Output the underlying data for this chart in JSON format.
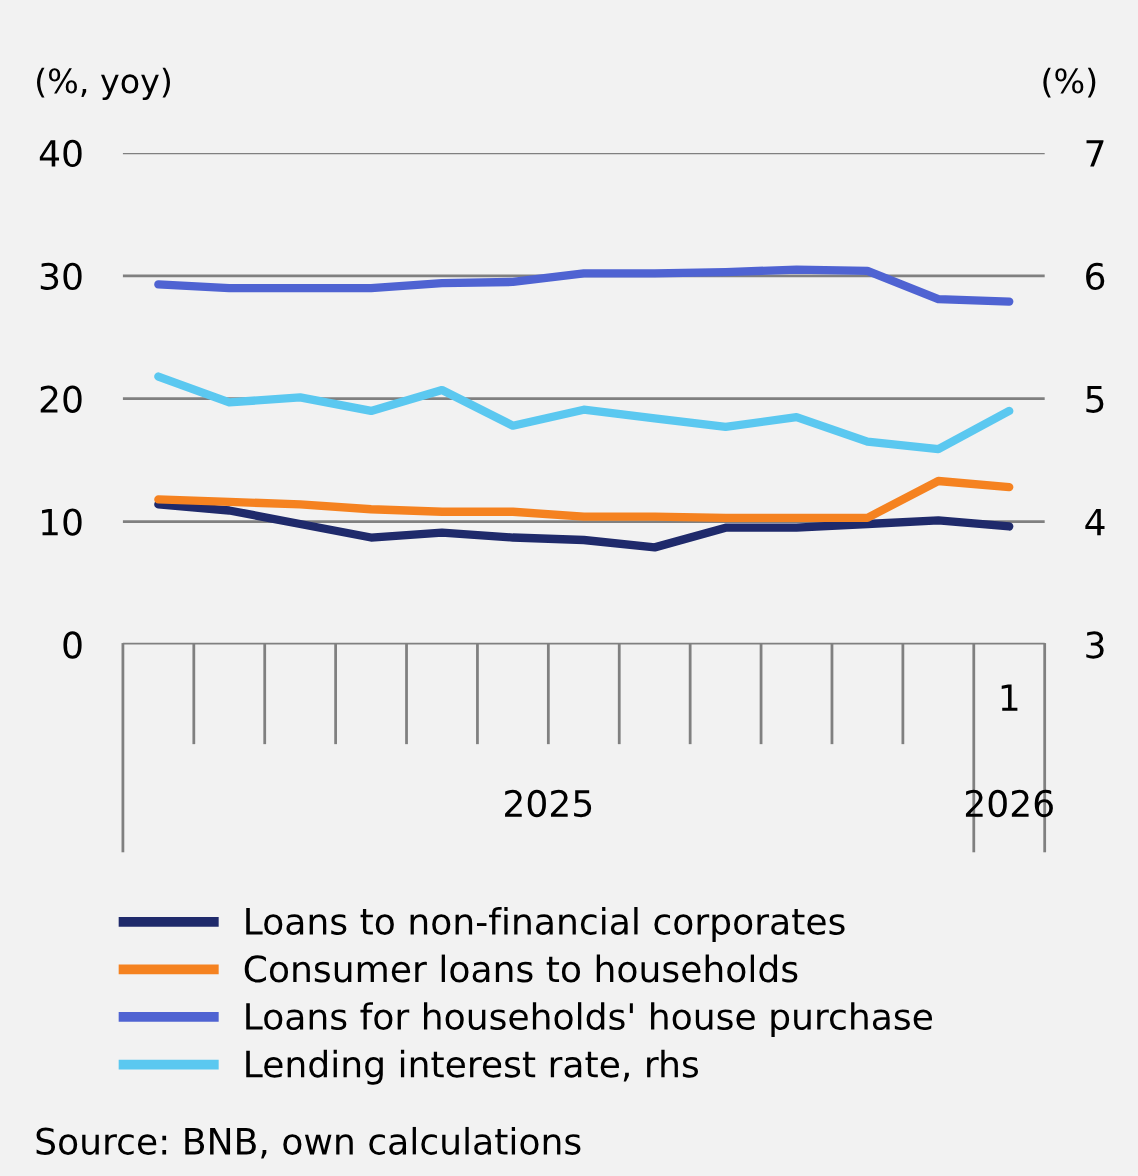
{
  "chart_data": {
    "type": "line",
    "ylabel": "(%, yoy)",
    "y2label": "(%)",
    "categories": [
      null,
      null,
      null,
      null,
      null,
      null,
      null,
      null,
      null,
      null,
      null,
      null,
      "1"
    ],
    "series": [
      {
        "name": "Loans to non-financial corporates",
        "color": "#1f2a6b",
        "values": [
          11.4,
          10.9,
          9.8,
          8.7,
          9.1,
          8.7,
          8.5,
          7.9,
          9.5,
          9.5,
          9.8,
          10.1,
          9.6
        ]
      },
      {
        "name": "Consumer loans to households",
        "color": "#f58220",
        "values": [
          11.8,
          11.6,
          11.4,
          11.0,
          10.8,
          10.8,
          10.4,
          10.4,
          10.3,
          10.3,
          10.3,
          13.3,
          12.8
        ]
      },
      {
        "name": "Loans for households' house purchase",
        "color": "#4f63d2",
        "values": [
          29.3,
          29.0,
          29.0,
          29.0,
          29.4,
          29.5,
          30.2,
          30.2,
          30.3,
          30.5,
          30.4,
          28.1,
          27.9
        ]
      },
      {
        "name": "Lending interest rate, rhs",
        "color": "#5bc8f0",
        "axis": "y2",
        "values": [
          5.18,
          4.97,
          5.01,
          4.9,
          5.07,
          4.78,
          4.91,
          4.84,
          4.77,
          4.85,
          4.65,
          4.59,
          4.9
        ]
      }
    ],
    "ylim": [
      0,
      40
    ],
    "yticks": [
      0,
      10,
      20,
      30,
      40
    ],
    "y2lim": [
      3,
      7
    ],
    "y2ticks": [
      3,
      4,
      5,
      6,
      7
    ],
    "grid": "y",
    "legend": "bottom",
    "line_style": "solid",
    "annotations": [
      "2025",
      "2026",
      "Source: BNB, own calculations"
    ]
  }
}
